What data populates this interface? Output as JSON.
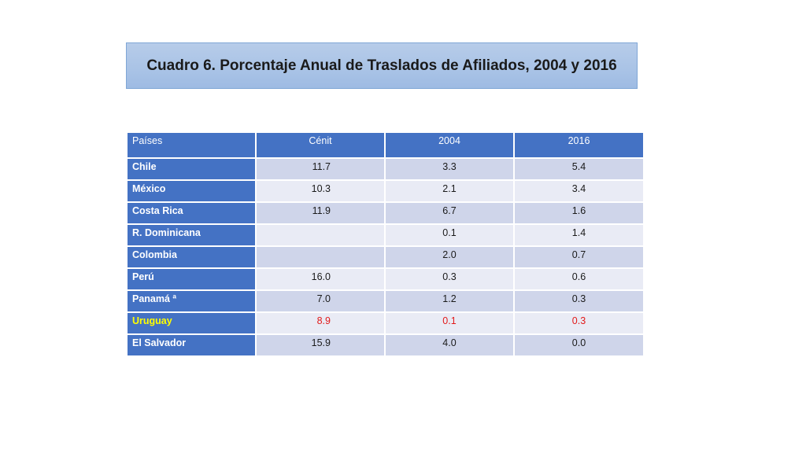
{
  "title": "Cuadro 6. Porcentaje Anual de Traslados de Afiliados, 2004 y 2016",
  "table": {
    "headers": [
      "Países",
      "Cénit",
      "2004",
      "2016"
    ],
    "rows": [
      {
        "country": "Chile",
        "cenit": "11.7",
        "y2004": "3.3",
        "y2016": "5.4"
      },
      {
        "country": "México",
        "cenit": "10.3",
        "y2004": "2.1",
        "y2016": "3.4"
      },
      {
        "country": "Costa Rica",
        "cenit": "11.9",
        "y2004": "6.7",
        "y2016": "1.6"
      },
      {
        "country": "R. Dominicana",
        "cenit": "",
        "y2004": "0.1",
        "y2016": "1.4"
      },
      {
        "country": "Colombia",
        "cenit": "",
        "y2004": "2.0",
        "y2016": "0.7"
      },
      {
        "country": "Perú",
        "cenit": "16.0",
        "y2004": "0.3",
        "y2016": "0.6"
      },
      {
        "country": "Panamá ª",
        "cenit": "7.0",
        "y2004": "1.2",
        "y2016": "0.3"
      },
      {
        "country": "Uruguay",
        "cenit": "8.9",
        "y2004": "0.1",
        "y2016": "0.3"
      },
      {
        "country": "El Salvador",
        "cenit": "15.9",
        "y2004": "4.0",
        "y2016": "0.0"
      }
    ]
  },
  "colors": {
    "header_blue": "#4472c4",
    "title_fill": "#a9c3e6",
    "row_dark": "#cfd5ea",
    "row_light": "#e9ebf5",
    "highlight_country": "#ffff00",
    "highlight_values": "#e21a1a"
  }
}
